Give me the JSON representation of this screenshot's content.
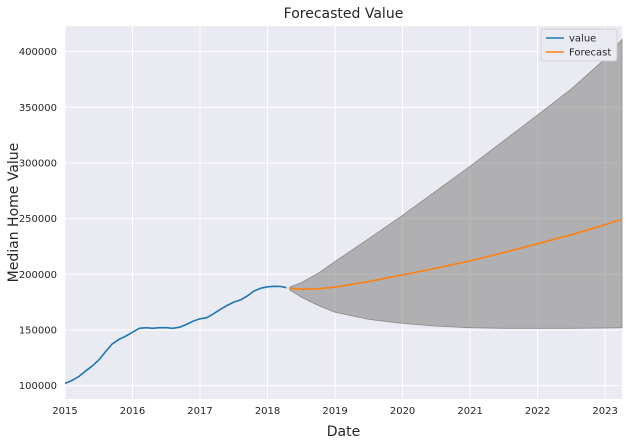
{
  "chart_data": {
    "type": "line",
    "title": "Forecasted Value",
    "xlabel": "Date",
    "ylabel": "Median Home Value",
    "xlim": [
      2015.0,
      2023.25
    ],
    "ylim": [
      88000,
      423000
    ],
    "x_ticks": [
      2015,
      2016,
      2017,
      2018,
      2019,
      2020,
      2021,
      2022,
      2023
    ],
    "x_tick_labels": [
      "2015",
      "2016",
      "2017",
      "2018",
      "2019",
      "2020",
      "2021",
      "2022",
      "2023"
    ],
    "y_ticks": [
      100000,
      150000,
      200000,
      250000,
      300000,
      350000,
      400000
    ],
    "y_tick_labels": [
      "100000",
      "150000",
      "200000",
      "250000",
      "300000",
      "350000",
      "400000"
    ],
    "grid": true,
    "legend_position": "top-right",
    "series": [
      {
        "name": "value",
        "color": "#1f77b4",
        "x": [
          2015.0,
          2015.1,
          2015.2,
          2015.3,
          2015.4,
          2015.5,
          2015.6,
          2015.7,
          2015.8,
          2015.9,
          2016.0,
          2016.1,
          2016.2,
          2016.3,
          2016.4,
          2016.5,
          2016.6,
          2016.7,
          2016.8,
          2016.9,
          2017.0,
          2017.1,
          2017.2,
          2017.3,
          2017.4,
          2017.5,
          2017.6,
          2017.7,
          2017.8,
          2017.9,
          2018.0,
          2018.1,
          2018.2,
          2018.28
        ],
        "y": [
          102000,
          104500,
          108000,
          113000,
          117500,
          123000,
          130500,
          137500,
          141500,
          144500,
          148000,
          151500,
          152000,
          151500,
          152000,
          152000,
          151500,
          152500,
          155000,
          158000,
          160000,
          161000,
          164500,
          168500,
          172000,
          175000,
          177000,
          180500,
          185000,
          187500,
          188800,
          189200,
          189000,
          188000
        ]
      },
      {
        "name": "Forecast",
        "color": "#ff7f0e",
        "x": [
          2018.33,
          2018.5,
          2018.75,
          2019.0,
          2019.5,
          2020.0,
          2020.5,
          2021.0,
          2021.5,
          2022.0,
          2022.5,
          2023.0,
          2023.25
        ],
        "y": [
          187500,
          186500,
          187000,
          188500,
          193500,
          199500,
          205500,
          212000,
          219500,
          227500,
          235500,
          244500,
          249500
        ]
      }
    ],
    "confidence_interval": {
      "color": "#808080",
      "x": [
        2018.33,
        2018.5,
        2018.75,
        2019.0,
        2019.5,
        2020.0,
        2020.5,
        2021.0,
        2021.5,
        2022.0,
        2022.5,
        2023.0,
        2023.25
      ],
      "upper": [
        188500,
        192500,
        201000,
        211500,
        232000,
        253000,
        275000,
        297000,
        320000,
        343000,
        366500,
        393500,
        411000
      ],
      "lower": [
        186000,
        179500,
        172000,
        166000,
        159500,
        156000,
        153500,
        152000,
        151500,
        151500,
        151500,
        151800,
        152000
      ]
    }
  }
}
